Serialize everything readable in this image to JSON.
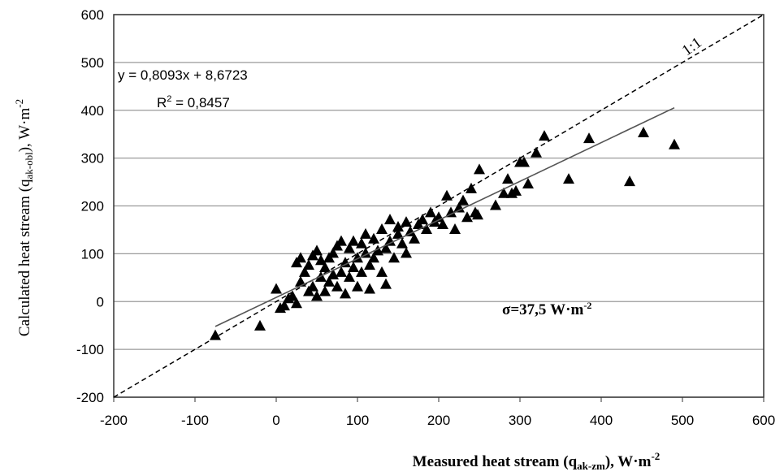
{
  "chart_data": {
    "type": "scatter",
    "x_label": {
      "text": "Measured heat stream (q",
      "sub": "ak-zm",
      "after": "), W·m",
      "sup": "-2"
    },
    "y_label": {
      "text": "Calculated heat stream (q",
      "sub": "ak-obl",
      "after": "), W·m",
      "sup": "-2"
    },
    "equation": "y = 0,8093x + 8,6723",
    "r_squared": {
      "text": "R",
      "sup": "2",
      "after": " = 0,8457"
    },
    "sigma": {
      "text": "σ=37,5 W·m",
      "sup": "-2"
    },
    "reference_line": {
      "label": "1:1",
      "slope": 1,
      "intercept": 0
    },
    "trendline": {
      "slope": 0.8093,
      "intercept": 8.6723,
      "x_range": [
        -75,
        490
      ]
    },
    "color": "#000000",
    "grid": true,
    "xlim": [
      -200,
      600
    ],
    "xticks": [
      -200,
      -100,
      0,
      100,
      200,
      300,
      400,
      500,
      600
    ],
    "ylim": [
      -200,
      600
    ],
    "yticks": [
      -200,
      -100,
      0,
      100,
      200,
      300,
      400,
      500,
      600
    ],
    "x": [
      -75,
      -20,
      0,
      5,
      10,
      15,
      20,
      25,
      25,
      30,
      30,
      35,
      40,
      40,
      45,
      45,
      50,
      50,
      55,
      55,
      60,
      60,
      65,
      65,
      70,
      70,
      75,
      75,
      80,
      80,
      85,
      85,
      90,
      90,
      95,
      95,
      100,
      100,
      105,
      105,
      110,
      110,
      115,
      115,
      120,
      120,
      125,
      130,
      130,
      135,
      135,
      140,
      140,
      145,
      150,
      150,
      155,
      160,
      160,
      165,
      170,
      175,
      180,
      185,
      190,
      195,
      200,
      205,
      210,
      215,
      220,
      225,
      230,
      235,
      240,
      245,
      250,
      248,
      270,
      280,
      285,
      290,
      295,
      300,
      305,
      310,
      320,
      330,
      360,
      385,
      435,
      452,
      490
    ],
    "values": [
      -72,
      -52,
      25,
      -15,
      -10,
      5,
      10,
      -5,
      80,
      90,
      40,
      60,
      20,
      75,
      95,
      30,
      105,
      10,
      50,
      85,
      70,
      20,
      90,
      40,
      55,
      100,
      30,
      115,
      60,
      125,
      80,
      15,
      50,
      110,
      70,
      125,
      90,
      30,
      60,
      120,
      100,
      140,
      75,
      25,
      130,
      90,
      105,
      60,
      150,
      35,
      110,
      170,
      125,
      90,
      140,
      155,
      120,
      100,
      165,
      145,
      130,
      160,
      170,
      150,
      185,
      165,
      175,
      160,
      220,
      185,
      150,
      195,
      210,
      175,
      235,
      185,
      275,
      180,
      200,
      225,
      255,
      225,
      230,
      290,
      290,
      245,
      310,
      345,
      255,
      340,
      250,
      352,
      327
    ]
  }
}
